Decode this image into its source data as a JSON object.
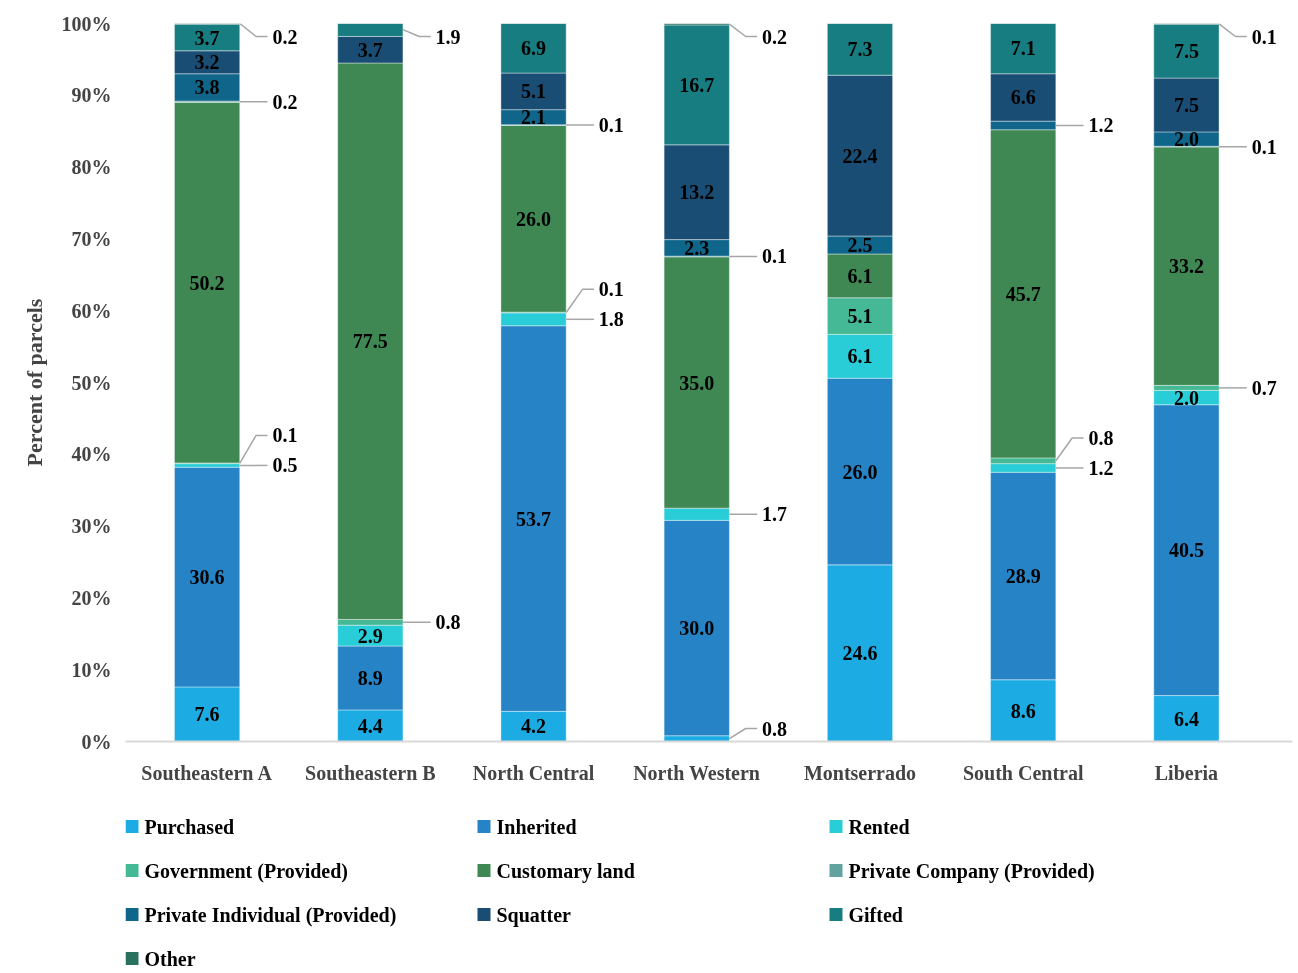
{
  "chart_data": {
    "type": "bar",
    "stacked": true,
    "ylabel": "Percent of parcels",
    "categories": [
      "Southeastern A",
      "Southeastern B",
      "North Central",
      "North Western",
      "Montserrado",
      "South Central",
      "Liberia"
    ],
    "ylim": [
      0,
      100
    ],
    "yticks": [
      {
        "value": 0,
        "label": "0%"
      },
      {
        "value": 10,
        "label": "10%"
      },
      {
        "value": 20,
        "label": "20%"
      },
      {
        "value": 30,
        "label": "30%"
      },
      {
        "value": 40,
        "label": "40%"
      },
      {
        "value": 50,
        "label": "50%"
      },
      {
        "value": 60,
        "label": "60%"
      },
      {
        "value": 70,
        "label": "70%"
      },
      {
        "value": 80,
        "label": "80%"
      },
      {
        "value": 90,
        "label": "90%"
      },
      {
        "value": 100,
        "label": "100%"
      }
    ],
    "legend": "bottom",
    "series": [
      {
        "name": "Purchased",
        "color": "#1cace3",
        "values": [
          7.6,
          4.4,
          4.2,
          0.8,
          24.6,
          8.6,
          6.4
        ],
        "value_labels": [
          "7.6",
          "4.4",
          "4.2",
          "0.8",
          "24.6",
          "8.6",
          "6.4"
        ]
      },
      {
        "name": "Inherited",
        "color": "#2684c6",
        "values": [
          30.6,
          8.9,
          53.7,
          30.0,
          26.0,
          28.9,
          40.5
        ],
        "value_labels": [
          "30.6",
          "8.9",
          "53.7",
          "30.0",
          "26.0",
          "28.9",
          "40.5"
        ]
      },
      {
        "name": "Rented",
        "color": "#29cdd8",
        "values": [
          0.5,
          2.9,
          1.8,
          1.7,
          6.1,
          1.2,
          2.0
        ],
        "value_labels": [
          "0.5",
          "2.9",
          "1.8",
          "1.7",
          "6.1",
          "1.2",
          "2.0"
        ]
      },
      {
        "name": "Government (Provided)",
        "color": "#45b996",
        "values": [
          0.1,
          0.8,
          0.1,
          null,
          5.1,
          0.8,
          0.7
        ],
        "value_labels": [
          "0.1",
          "0.8",
          "0.1",
          null,
          "5.1",
          "0.8",
          "0.7"
        ]
      },
      {
        "name": "Customary land",
        "color": "#3f8854",
        "values": [
          50.2,
          77.5,
          26.0,
          35.0,
          6.1,
          45.7,
          33.2
        ],
        "value_labels": [
          "50.2",
          "77.5",
          "26.0",
          "35.0",
          "6.1",
          "45.7",
          "33.2"
        ]
      },
      {
        "name": "Private Company (Provided)",
        "color": "#62a39f",
        "values": [
          0.2,
          null,
          0.1,
          0.1,
          null,
          null,
          0.1
        ],
        "value_labels": [
          "0.2",
          null,
          "0.1",
          "0.1",
          null,
          null,
          "0.1"
        ]
      },
      {
        "name": "Private Individual (Provided)",
        "color": "#10668a",
        "values": [
          3.8,
          null,
          2.1,
          2.3,
          2.5,
          1.2,
          2.0
        ],
        "value_labels": [
          "3.8",
          null,
          "2.1",
          "2.3",
          "2.5",
          "1.2",
          "2.0"
        ]
      },
      {
        "name": "Squatter",
        "color": "#1a4d74",
        "values": [
          3.2,
          3.7,
          5.1,
          13.2,
          22.4,
          6.6,
          7.5
        ],
        "value_labels": [
          "3.2",
          "3.7",
          "5.1",
          "13.2",
          "22.4",
          "6.6",
          "7.5"
        ]
      },
      {
        "name": "Gifted",
        "color": "#187d80",
        "values": [
          3.7,
          1.9,
          6.9,
          16.7,
          7.3,
          7.1,
          7.5
        ],
        "value_labels": [
          "3.7",
          "1.9",
          "6.9",
          "16.7",
          "7.3",
          "7.1",
          "7.5"
        ]
      },
      {
        "name": "Other",
        "color": "#2a705e",
        "values": [
          0.2,
          null,
          null,
          0.2,
          null,
          null,
          0.1
        ],
        "value_labels": [
          "0.2",
          null,
          null,
          "0.2",
          null,
          null,
          "0.1"
        ]
      }
    ]
  }
}
